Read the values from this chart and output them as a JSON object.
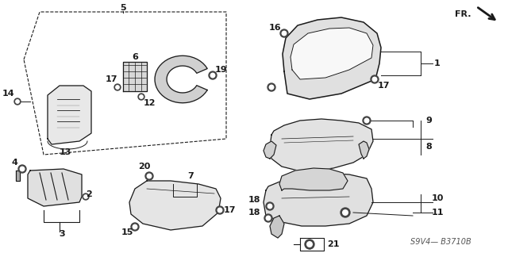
{
  "bg_color": "#ffffff",
  "line_color": "#1a1a1a",
  "diagram_code": "S9V4— B3710B",
  "fr_label": "FR.",
  "figsize": [
    6.4,
    3.19
  ],
  "dpi": 100
}
